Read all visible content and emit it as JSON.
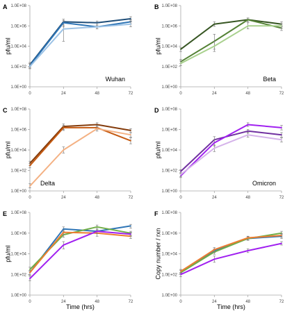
{
  "chart_data": [
    {
      "panel": "A",
      "type": "line",
      "label": "Wuhan",
      "xlabel": "",
      "ylabel": "pfu/ml",
      "x": [
        0,
        24,
        48,
        72
      ],
      "xlim": [
        0,
        72
      ],
      "ylim_log10": [
        0,
        8
      ],
      "x_ticks": [
        "0",
        "24",
        "48",
        "72"
      ],
      "y_ticks": [
        "1.0E+00",
        "1.0E+02",
        "1.0E+04",
        "1.0E+06",
        "1.0E+08"
      ],
      "grid": false,
      "legend": "none",
      "series": [
        {
          "color": "#1f4e79",
          "values": [
            150,
            2500000,
            2000000,
            5000000
          ],
          "err_hi": [
            250,
            4500000,
            3000000,
            8000000
          ],
          "err_lo": [
            90,
            1200000,
            1200000,
            3000000
          ]
        },
        {
          "color": "#2e75b6",
          "values": [
            120,
            2000000,
            800000,
            2500000
          ],
          "err_hi": [
            200,
            3500000,
            1200000,
            4000000
          ],
          "err_lo": [
            70,
            800000,
            500000,
            1500000
          ]
        },
        {
          "color": "#9dc3e6",
          "values": [
            100,
            500000,
            800000,
            1500000
          ],
          "err_hi": [
            180,
            1200000,
            1200000,
            2500000
          ],
          "err_lo": [
            60,
            30000,
            500000,
            800000
          ]
        }
      ]
    },
    {
      "panel": "B",
      "type": "line",
      "label": "Beta",
      "xlabel": "",
      "ylabel": "pfu/ml",
      "x": [
        0,
        24,
        48,
        72
      ],
      "xlim": [
        0,
        72
      ],
      "ylim_log10": [
        0,
        8
      ],
      "x_ticks": [
        "0",
        "24",
        "48",
        "72"
      ],
      "y_ticks": [
        "1.0E+00",
        "1.0E+02",
        "1.0E+04",
        "1.0E+06",
        "1.0E+08"
      ],
      "grid": false,
      "legend": "none",
      "series": [
        {
          "color": "#375623",
          "values": [
            5000,
            1500000,
            4000000,
            1500000
          ],
          "err_hi": [
            7000,
            2500000,
            6000000,
            2500000
          ],
          "err_lo": [
            3000,
            900000,
            2500000,
            900000
          ]
        },
        {
          "color": "#548235",
          "values": [
            300,
            30000,
            4000000,
            600000
          ],
          "err_hi": [
            500,
            150000,
            6000000,
            1000000
          ],
          "err_lo": [
            200,
            5000,
            2500000,
            350000
          ]
        },
        {
          "color": "#a9d18e",
          "values": [
            200,
            10000,
            1000000,
            1000000
          ],
          "err_hi": [
            350,
            30000,
            2000000,
            1500000
          ],
          "err_lo": [
            120,
            3000,
            500000,
            600000
          ]
        }
      ]
    },
    {
      "panel": "C",
      "type": "line",
      "label": "Delta",
      "xlabel": "",
      "ylabel": "pfu/ml",
      "x": [
        0,
        24,
        48,
        72
      ],
      "xlim": [
        0,
        72
      ],
      "ylim_log10": [
        0,
        8
      ],
      "x_ticks": [
        "0",
        "24",
        "48",
        "72"
      ],
      "y_ticks": [
        "1.0E+00",
        "1.0E+02",
        "1.0E+04",
        "1.0E+06",
        "1.0E+08"
      ],
      "grid": false,
      "legend": "none",
      "series": [
        {
          "color": "#843c0c",
          "values": [
            500,
            2000000,
            3000000,
            800000
          ],
          "err_hi": [
            800,
            3500000,
            4500000,
            1200000
          ],
          "err_lo": [
            300,
            1000000,
            2000000,
            500000
          ]
        },
        {
          "color": "#c55a11",
          "values": [
            300,
            1500000,
            1500000,
            80000
          ],
          "err_hi": [
            500,
            2500000,
            2500000,
            150000
          ],
          "err_lo": [
            180,
            800000,
            1000000,
            40000
          ]
        },
        {
          "color": "#f4b183",
          "values": [
            3,
            10000,
            1200000,
            300000
          ],
          "err_hi": [
            5,
            20000,
            2000000,
            500000
          ],
          "err_lo": [
            2,
            5000,
            700000,
            180000
          ]
        }
      ]
    },
    {
      "panel": "D",
      "type": "line",
      "label": "Omicron",
      "xlabel": "",
      "ylabel": "pfu/ml",
      "x": [
        0,
        24,
        48,
        72
      ],
      "xlim": [
        0,
        72
      ],
      "ylim_log10": [
        0,
        8
      ],
      "x_ticks": [
        "0",
        "24",
        "48",
        "72"
      ],
      "y_ticks": [
        "1.0E+00",
        "1.0E+02",
        "1.0E+04",
        "1.0E+06",
        "1.0E+08"
      ],
      "grid": false,
      "legend": "none",
      "series": [
        {
          "color": "#7030a0",
          "values": [
            80,
            100000,
            700000,
            300000
          ],
          "err_hi": [
            120,
            200000,
            1000000,
            500000
          ],
          "err_lo": [
            50,
            50000,
            450000,
            180000
          ]
        },
        {
          "color": "#a020f0",
          "values": [
            30,
            50000,
            3000000,
            1500000
          ],
          "err_hi": [
            50,
            100000,
            4500000,
            2500000
          ],
          "err_lo": [
            20,
            25000,
            2000000,
            900000
          ]
        },
        {
          "color": "#d5b3ea",
          "values": [
            40,
            15000,
            300000,
            100000
          ],
          "err_hi": [
            60,
            30000,
            500000,
            150000
          ],
          "err_lo": [
            25,
            7000,
            180000,
            60000
          ]
        }
      ]
    },
    {
      "panel": "E",
      "type": "line",
      "xlabel": "Time (hrs)",
      "ylabel": "pfu/ml",
      "x": [
        0,
        24,
        48,
        72
      ],
      "xlim": [
        0,
        72
      ],
      "ylim_log10": [
        0,
        8
      ],
      "x_ticks": [
        "0",
        "24",
        "48",
        "72"
      ],
      "y_ticks": [
        "1.0E+00",
        "1.0E+02",
        "1.0E+04",
        "1.0E+06",
        "1.0E+08"
      ],
      "grid": false,
      "legend": "none",
      "series": [
        {
          "color": "#2e75b6",
          "values": [
            150,
            2500000,
            1500000,
            5000000
          ],
          "err_hi": [
            250,
            4000000,
            2500000,
            7000000
          ],
          "err_lo": [
            90,
            1500000,
            900000,
            3000000
          ]
        },
        {
          "color": "#70ad47",
          "values": [
            300,
            700000,
            4000000,
            1000000
          ],
          "err_hi": [
            500,
            1200000,
            6000000,
            1500000
          ],
          "err_lo": [
            180,
            400000,
            2500000,
            600000
          ]
        },
        {
          "color": "#ed7d31",
          "values": [
            150,
            1200000,
            1000000,
            500000
          ],
          "err_hi": [
            250,
            2000000,
            2000000,
            1000000
          ],
          "err_lo": [
            90,
            700000,
            500000,
            300000
          ]
        },
        {
          "color": "#a020f0",
          "values": [
            40,
            70000,
            1500000,
            800000
          ],
          "err_hi": [
            70,
            150000,
            2500000,
            1200000
          ],
          "err_lo": [
            25,
            30000,
            900000,
            500000
          ]
        }
      ]
    },
    {
      "panel": "F",
      "type": "line",
      "xlabel": "Time (hrs)",
      "ylabel": "Copy number / rxn",
      "x": [
        0,
        24,
        48,
        72
      ],
      "xlim": [
        0,
        72
      ],
      "ylim_log10": [
        0,
        8
      ],
      "x_ticks": [
        "0",
        "24",
        "48",
        "72"
      ],
      "y_ticks": [
        "1.0E+00",
        "1.0E+02",
        "1.0E+04",
        "1.0E+06",
        "1.0E+08"
      ],
      "grid": false,
      "legend": "none",
      "series": [
        {
          "color": "#2e75b6",
          "values": [
            200,
            20000,
            300000,
            500000
          ],
          "err_hi": [
            300,
            30000,
            450000,
            800000
          ],
          "err_lo": [
            130,
            13000,
            200000,
            300000
          ]
        },
        {
          "color": "#70ad47",
          "values": [
            150,
            15000,
            300000,
            1000000
          ],
          "err_hi": [
            250,
            25000,
            450000,
            1500000
          ],
          "err_lo": [
            100,
            9000,
            200000,
            600000
          ]
        },
        {
          "color": "#ed7d31",
          "values": [
            200,
            25000,
            350000,
            600000
          ],
          "err_hi": [
            300,
            40000,
            500000,
            900000
          ],
          "err_lo": [
            130,
            15000,
            230000,
            400000
          ]
        },
        {
          "color": "#a020f0",
          "values": [
            100,
            3000,
            20000,
            100000
          ],
          "err_hi": [
            150,
            6000,
            30000,
            150000
          ],
          "err_lo": [
            60,
            1500,
            13000,
            70000
          ]
        }
      ]
    }
  ]
}
